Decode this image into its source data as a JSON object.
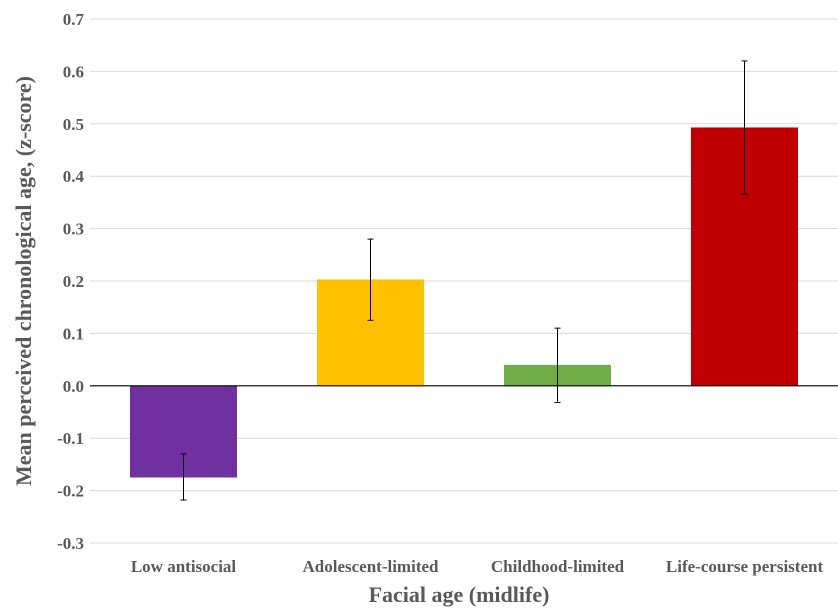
{
  "chart_data": {
    "type": "bar",
    "title": "",
    "xlabel": "Facial age (midlife)",
    "ylabel": "Mean perceived chronological age, (z-score)",
    "ylim": [
      -0.3,
      0.7
    ],
    "yticks": [
      "-0.3",
      "-0.2",
      "-0.1",
      "0.0",
      "0.1",
      "0.2",
      "0.3",
      "0.4",
      "0.5",
      "0.6",
      "0.7"
    ],
    "categories": [
      "Low antisocial",
      "Adolescent-limited",
      "Childhood-limited",
      "Life-course persistent"
    ],
    "values": [
      -0.175,
      0.203,
      0.04,
      0.493
    ],
    "error_low": [
      -0.218,
      0.125,
      -0.032,
      0.366
    ],
    "error_high": [
      -0.13,
      0.28,
      0.11,
      0.62
    ],
    "colors": [
      "#7030a0",
      "#ffc000",
      "#70ad47",
      "#c00000"
    ],
    "grid": true,
    "legend": "none"
  }
}
